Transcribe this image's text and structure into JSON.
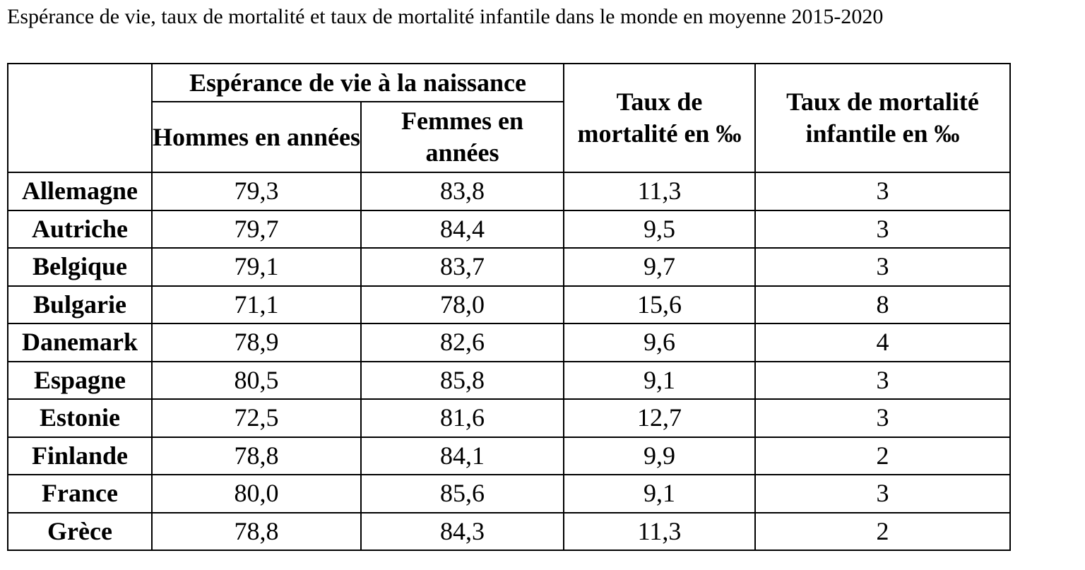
{
  "title": "Espérance de vie, taux de mortalité et taux de mortalité infantile dans le monde en moyenne 2015-2020",
  "table": {
    "group_header": "Espérance de vie à la naissance",
    "col_men": "Hommes en années",
    "col_women": "Femmes en années",
    "col_mortality": "Taux de mortalité en ‰",
    "col_infant": "Taux de mortalité infantile en ‰",
    "rows": [
      {
        "country": "Allemagne",
        "men": "79,3",
        "women": "83,8",
        "mortality": "11,3",
        "infant": "3"
      },
      {
        "country": "Autriche",
        "men": "79,7",
        "women": "84,4",
        "mortality": "9,5",
        "infant": "3"
      },
      {
        "country": "Belgique",
        "men": "79,1",
        "women": "83,7",
        "mortality": "9,7",
        "infant": "3"
      },
      {
        "country": "Bulgarie",
        "men": "71,1",
        "women": "78,0",
        "mortality": "15,6",
        "infant": "8"
      },
      {
        "country": "Danemark",
        "men": "78,9",
        "women": "82,6",
        "mortality": "9,6",
        "infant": "4"
      },
      {
        "country": "Espagne",
        "men": "80,5",
        "women": "85,8",
        "mortality": "9,1",
        "infant": "3"
      },
      {
        "country": "Estonie",
        "men": "72,5",
        "women": "81,6",
        "mortality": "12,7",
        "infant": "3"
      },
      {
        "country": "Finlande",
        "men": "78,8",
        "women": "84,1",
        "mortality": "9,9",
        "infant": "2"
      },
      {
        "country": "France",
        "men": "80,0",
        "women": "85,6",
        "mortality": "9,1",
        "infant": "3"
      },
      {
        "country": "Grèce",
        "men": "78,8",
        "women": "84,3",
        "mortality": "11,3",
        "infant": "2"
      }
    ]
  }
}
